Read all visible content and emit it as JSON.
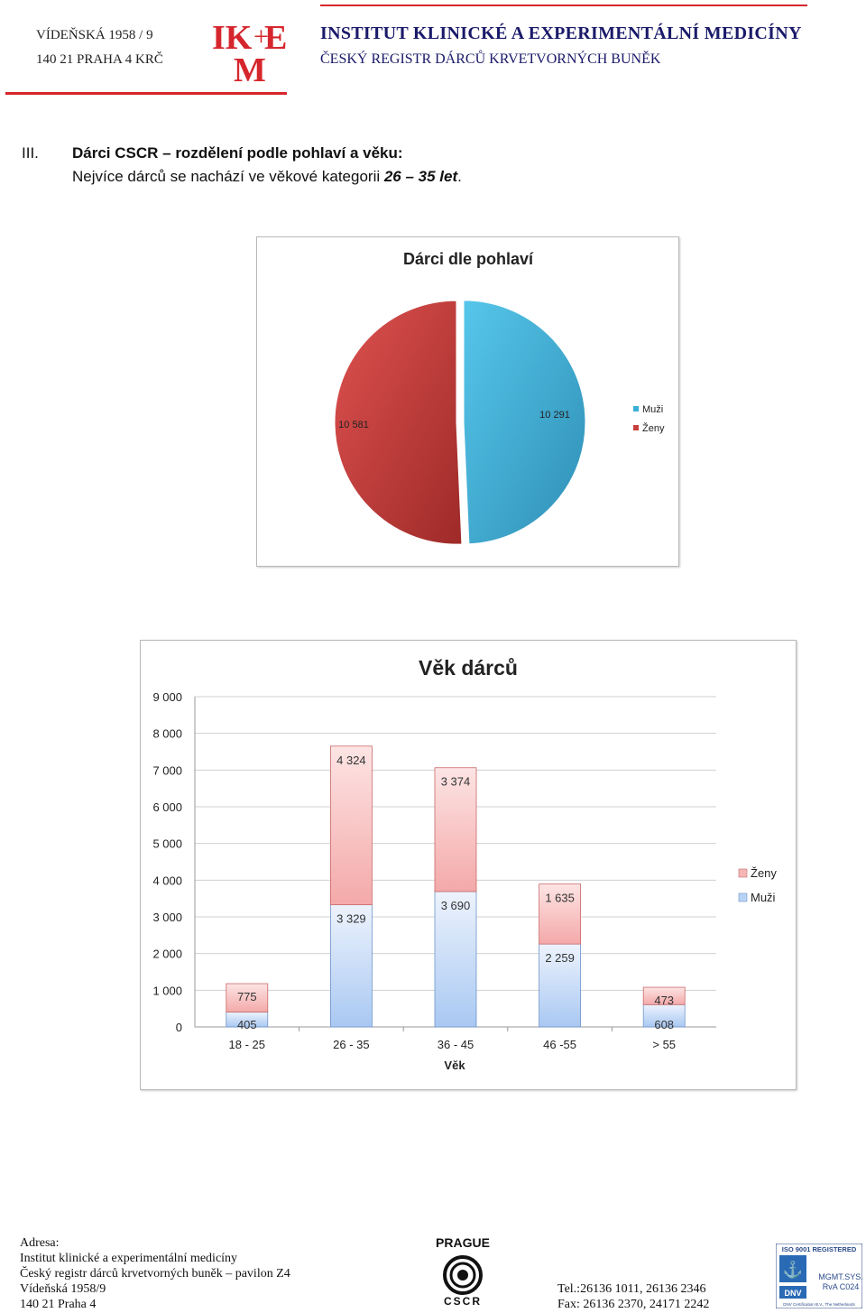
{
  "header": {
    "address_line1": "VÍDEŇSKÁ  1958 / 9",
    "address_line2": "140 21 PRAHA 4   KRČ",
    "logo_text_top": "IKEM",
    "institute": "INSTITUT KLINICKÉ A EXPERIMENTÁLNÍ MEDICÍNY",
    "registry": "ČESKÝ REGISTR DÁRCŮ KRVETVORNÝCH BUNĚK"
  },
  "section": {
    "number": "III.",
    "title": "Dárci CSCR – rozdělení podle pohlaví a věku:",
    "sentence_prefix": "Nejvíce dárců se nachází ve věkové kategorii ",
    "sentence_range": "26 – 35 let",
    "sentence_suffix": "."
  },
  "chart_data": [
    {
      "type": "pie",
      "title": "Dárci dle pohlaví",
      "categories": [
        "Muži",
        "Ženy"
      ],
      "values": [
        10291,
        10581
      ],
      "labels": [
        "10 291",
        "10 581"
      ],
      "colors": [
        "#3aaed6",
        "#c8403e"
      ],
      "legend": [
        "Muži",
        "Ženy"
      ],
      "legend_position": "right"
    },
    {
      "type": "bar",
      "stacked": true,
      "title": "Věk dárců",
      "xlabel": "Věk",
      "ylabel": "",
      "ylim": [
        0,
        9000
      ],
      "yticks": [
        "0",
        "1 000",
        "2 000",
        "3 000",
        "4 000",
        "5 000",
        "6 000",
        "7 000",
        "8 000",
        "9 000"
      ],
      "ytick_values": [
        0,
        1000,
        2000,
        3000,
        4000,
        5000,
        6000,
        7000,
        8000,
        9000
      ],
      "categories": [
        "18 - 25",
        "26 - 35",
        "36 - 45",
        "46 -55",
        "> 55"
      ],
      "series": [
        {
          "name": "Muži",
          "values": [
            405,
            3329,
            3690,
            2259,
            608
          ],
          "labels": [
            "405",
            "3 329",
            "3 690",
            "2 259",
            "608"
          ],
          "color": "#b9d3f5"
        },
        {
          "name": "Ženy",
          "values": [
            775,
            4324,
            3374,
            1635,
            473
          ],
          "labels": [
            "775",
            "4 324",
            "3 374",
            "1 635",
            "473"
          ],
          "color": "#f5b6b6"
        }
      ],
      "legend": [
        "Ženy",
        "Muži"
      ],
      "legend_position": "right",
      "grid": true
    }
  ],
  "footer": {
    "address_heading": "Adresa:",
    "line1": "Institut klinické a experimentální medicíny",
    "line2": "Český registr dárců krvetvorných buněk – pavilon Z4",
    "line3": "Vídeňská 1958/9",
    "line4": "140 21 Praha 4",
    "tel": "Tel.:26136 1011, 26136 2346",
    "fax": "Fax: 26136 2370, 24171 2242",
    "prague_logo_top": "PRAGUE",
    "prague_logo_bottom": "CSCR",
    "iso_text": "ISO 9001 REGISTERED",
    "dnv_text": "DNV",
    "mgmt_text": "MGMT.SYS.",
    "rva_text": "RvA C024",
    "dnv_cert": "DNV Certification B.V., The Netherlands"
  }
}
